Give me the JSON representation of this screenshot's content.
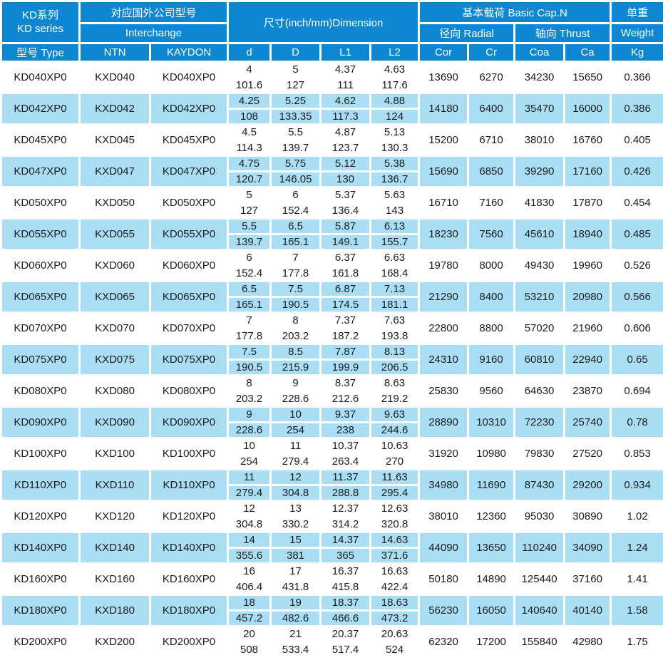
{
  "colors": {
    "header_bg": "#0d87d1",
    "header_text": "#ffffff",
    "row_bg": "#ffffff",
    "row_alt_bg": "#a9def5",
    "text": "#1c1c1c",
    "grid": "#ffffff"
  },
  "table": {
    "header": {
      "series_zh": "KD系列",
      "series_en": "KD series",
      "interchange_zh": "对应国外公司型号",
      "interchange_en": "Interchange",
      "dimension": "尺寸(inch/mm)Dimension",
      "basic_cap": "基本载荷 Basic Cap.N",
      "radial": "径向 Radial",
      "thrust": "轴向 Thrust",
      "weight_zh": "单重",
      "weight_en": "Weight",
      "columns": [
        "型号 Type",
        "NTN",
        "KAYDON",
        "d",
        "D",
        "L1",
        "L2",
        "Cor",
        "Cr",
        "Coa",
        "Ca",
        "Kg"
      ]
    },
    "rows": [
      {
        "type": "KD040XP0",
        "ntn": "KXD040",
        "kaydon": "KD040XP0",
        "d": [
          "4",
          "101.6"
        ],
        "D": [
          "5",
          "127"
        ],
        "L1": [
          "4.37",
          "111"
        ],
        "L2": [
          "4.63",
          "117.6"
        ],
        "cor": "13690",
        "cr": "6270",
        "coa": "34230",
        "ca": "15650",
        "kg": "0.366"
      },
      {
        "type": "KD042XP0",
        "ntn": "KXD042",
        "kaydon": "KD042XP0",
        "d": [
          "4.25",
          "108"
        ],
        "D": [
          "5.25",
          "133.35"
        ],
        "L1": [
          "4.62",
          "117.3"
        ],
        "L2": [
          "4.88",
          "124"
        ],
        "cor": "14180",
        "cr": "6400",
        "coa": "35470",
        "ca": "16000",
        "kg": "0.386"
      },
      {
        "type": "KD045XP0",
        "ntn": "KXD045",
        "kaydon": "KD045XP0",
        "d": [
          "4.5",
          "114.3"
        ],
        "D": [
          "5.5",
          "139.7"
        ],
        "L1": [
          "4.87",
          "123.7"
        ],
        "L2": [
          "5.13",
          "130.3"
        ],
        "cor": "15200",
        "cr": "6710",
        "coa": "38010",
        "ca": "16760",
        "kg": "0.405"
      },
      {
        "type": "KD047XP0",
        "ntn": "KXD047",
        "kaydon": "KD047XP0",
        "d": [
          "4.75",
          "120.7"
        ],
        "D": [
          "5.75",
          "146.05"
        ],
        "L1": [
          "5.12",
          "130"
        ],
        "L2": [
          "5.38",
          "136.7"
        ],
        "cor": "15690",
        "cr": "6850",
        "coa": "39290",
        "ca": "17160",
        "kg": "0.426"
      },
      {
        "type": "KD050XP0",
        "ntn": "KXD050",
        "kaydon": "KD050XP0",
        "d": [
          "5",
          "127"
        ],
        "D": [
          "6",
          "152.4"
        ],
        "L1": [
          "5.37",
          "136.4"
        ],
        "L2": [
          "5.63",
          "143"
        ],
        "cor": "16710",
        "cr": "7160",
        "coa": "41830",
        "ca": "17870",
        "kg": "0.454"
      },
      {
        "type": "KD055XP0",
        "ntn": "KXD055",
        "kaydon": "KD055XP0",
        "d": [
          "5.5",
          "139.7"
        ],
        "D": [
          "6.5",
          "165.1"
        ],
        "L1": [
          "5.87",
          "149.1"
        ],
        "L2": [
          "6.13",
          "155.7"
        ],
        "cor": "18230",
        "cr": "7560",
        "coa": "45610",
        "ca": "18940",
        "kg": "0.485"
      },
      {
        "type": "KD060XP0",
        "ntn": "KXD060",
        "kaydon": "KD060XP0",
        "d": [
          "6",
          "152.4"
        ],
        "D": [
          "7",
          "177.8"
        ],
        "L1": [
          "6.37",
          "161.8"
        ],
        "L2": [
          "6.63",
          "168.4"
        ],
        "cor": "19780",
        "cr": "8000",
        "coa": "49430",
        "ca": "19960",
        "kg": "0.526"
      },
      {
        "type": "KD065XP0",
        "ntn": "KXD065",
        "kaydon": "KD065XP0",
        "d": [
          "6.5",
          "165.1"
        ],
        "D": [
          "7.5",
          "190.5"
        ],
        "L1": [
          "6.87",
          "174.5"
        ],
        "L2": [
          "7.13",
          "181.1"
        ],
        "cor": "21290",
        "cr": "8400",
        "coa": "53210",
        "ca": "20980",
        "kg": "0.566"
      },
      {
        "type": "KD070XP0",
        "ntn": "KXD070",
        "kaydon": "KD070XP0",
        "d": [
          "7",
          "177.8"
        ],
        "D": [
          "8",
          "203.2"
        ],
        "L1": [
          "7.37",
          "187.2"
        ],
        "L2": [
          "7.63",
          "193.8"
        ],
        "cor": "22800",
        "cr": "8800",
        "coa": "57020",
        "ca": "21960",
        "kg": "0.606"
      },
      {
        "type": "KD075XP0",
        "ntn": "KXD075",
        "kaydon": "KD075XP0",
        "d": [
          "7.5",
          "190.5"
        ],
        "D": [
          "8.5",
          "215.9"
        ],
        "L1": [
          "7.87",
          "199.9"
        ],
        "L2": [
          "8.13",
          "206.5"
        ],
        "cor": "24310",
        "cr": "9160",
        "coa": "60810",
        "ca": "22940",
        "kg": "0.65"
      },
      {
        "type": "KD080XP0",
        "ntn": "KXD080",
        "kaydon": "KD080XP0",
        "d": [
          "8",
          "203.2"
        ],
        "D": [
          "9",
          "228.6"
        ],
        "L1": [
          "8.37",
          "212.6"
        ],
        "L2": [
          "8.63",
          "219.2"
        ],
        "cor": "25830",
        "cr": "9560",
        "coa": "64630",
        "ca": "23870",
        "kg": "0.694"
      },
      {
        "type": "KD090XP0",
        "ntn": "KXD090",
        "kaydon": "KD090XP0",
        "d": [
          "9",
          "228.6"
        ],
        "D": [
          "10",
          "254"
        ],
        "L1": [
          "9.37",
          "238"
        ],
        "L2": [
          "9.63",
          "244.6"
        ],
        "cor": "28890",
        "cr": "10310",
        "coa": "72230",
        "ca": "25740",
        "kg": "0.78"
      },
      {
        "type": "KD100XP0",
        "ntn": "KXD100",
        "kaydon": "KD100XP0",
        "d": [
          "10",
          "254"
        ],
        "D": [
          "11",
          "279.4"
        ],
        "L1": [
          "10.37",
          "263.4"
        ],
        "L2": [
          "10.63",
          "270"
        ],
        "cor": "31920",
        "cr": "10980",
        "coa": "79830",
        "ca": "27520",
        "kg": "0.853"
      },
      {
        "type": "KD110XP0",
        "ntn": "KXD110",
        "kaydon": "KD110XP0",
        "d": [
          "11",
          "279.4"
        ],
        "D": [
          "12",
          "304.8"
        ],
        "L1": [
          "11.37",
          "288.8"
        ],
        "L2": [
          "11.63",
          "295.4"
        ],
        "cor": "34980",
        "cr": "11690",
        "coa": "87430",
        "ca": "29200",
        "kg": "0.934"
      },
      {
        "type": "KD120XP0",
        "ntn": "KXD120",
        "kaydon": "KD120XP0",
        "d": [
          "12",
          "304.8"
        ],
        "D": [
          "13",
          "330.2"
        ],
        "L1": [
          "12.37",
          "314.2"
        ],
        "L2": [
          "12.63",
          "320.8"
        ],
        "cor": "38010",
        "cr": "12360",
        "coa": "95030",
        "ca": "30890",
        "kg": "1.02"
      },
      {
        "type": "KD140XP0",
        "ntn": "KXD140",
        "kaydon": "KD140XP0",
        "d": [
          "14",
          "355.6"
        ],
        "D": [
          "15",
          "381"
        ],
        "L1": [
          "14.37",
          "365"
        ],
        "L2": [
          "14.63",
          "371.6"
        ],
        "cor": "44090",
        "cr": "13650",
        "coa": "110240",
        "ca": "34090",
        "kg": "1.24"
      },
      {
        "type": "KD160XP0",
        "ntn": "KXD160",
        "kaydon": "KD160XP0",
        "d": [
          "16",
          "406.4"
        ],
        "D": [
          "17",
          "431.8"
        ],
        "L1": [
          "16.37",
          "415.8"
        ],
        "L2": [
          "16.63",
          "422.4"
        ],
        "cor": "50180",
        "cr": "14890",
        "coa": "125440",
        "ca": "37160",
        "kg": "1.41"
      },
      {
        "type": "KD180XP0",
        "ntn": "KXD180",
        "kaydon": "KD180XP0",
        "d": [
          "18",
          "457.2"
        ],
        "D": [
          "19",
          "482.6"
        ],
        "L1": [
          "18.37",
          "466.6"
        ],
        "L2": [
          "18.63",
          "473.2"
        ],
        "cor": "56230",
        "cr": "16050",
        "coa": "140640",
        "ca": "40140",
        "kg": "1.58"
      },
      {
        "type": "KD200XP0",
        "ntn": "KXD200",
        "kaydon": "KD200XP0",
        "d": [
          "20",
          "508"
        ],
        "D": [
          "21",
          "533.4"
        ],
        "L1": [
          "20.37",
          "517.4"
        ],
        "L2": [
          "20.63",
          "524"
        ],
        "cor": "62320",
        "cr": "17200",
        "coa": "155840",
        "ca": "42980",
        "kg": "1.75"
      }
    ]
  }
}
